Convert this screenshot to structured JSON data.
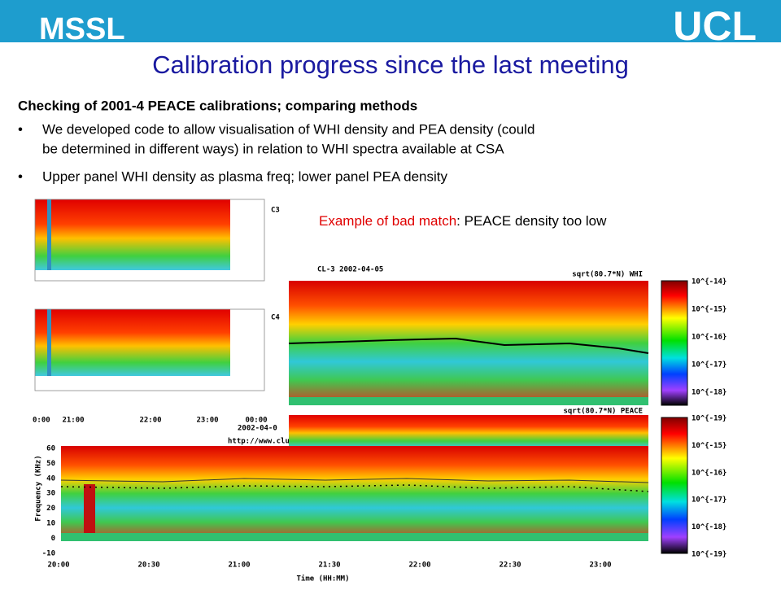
{
  "header": {
    "left": "MSSL",
    "right": "UCL"
  },
  "title": "Calibration progress since the last meeting",
  "heading": "Checking of 2001-4 PEACE calibrations; comparing methods",
  "bullets": [
    [
      "We developed code to allow visualisation of WHI density and PEA density (could",
      "be determined in different ways) in relation to WHI spectra available at CSA"
    ],
    [
      "Upper panel WHI density as plasma freq; lower panel PEA density"
    ]
  ],
  "annotation": {
    "highlight": "Example of bad match",
    "rest": ": PEACE density too low"
  },
  "left_figure": {
    "panels": [
      "C3",
      "C4"
    ],
    "time_ticks": [
      "0:00",
      "21:00",
      "22:00",
      "23:00",
      "00:00"
    ],
    "date": "2002-04-0",
    "url": "http://www.cluster."
  },
  "main_figure": {
    "title": "CL-3 2002-04-05",
    "upper_label": "sqrt(80.7*N) WHI",
    "lower_label": "sqrt(80.7*N) PEACE",
    "upper_colorbar": [
      "10^{-14}",
      "10^{-15}",
      "10^{-16}",
      "10^{-17}",
      "10^{-18}"
    ],
    "lower_colorbar": [
      "10^{-19}",
      "10^{-15}",
      "10^{-16}",
      "10^{-17}",
      "10^{-18}",
      "10^{-19}"
    ],
    "y_label": "Frequency (KHz)",
    "y_ticks": [
      "60",
      "50",
      "40",
      "30",
      "20",
      "10",
      "0",
      "-10"
    ],
    "x_ticks": [
      "20:00",
      "20:30",
      "21:00",
      "21:30",
      "22:00",
      "22:30",
      "23:00"
    ],
    "x_label": "Time (HH:MM)"
  }
}
